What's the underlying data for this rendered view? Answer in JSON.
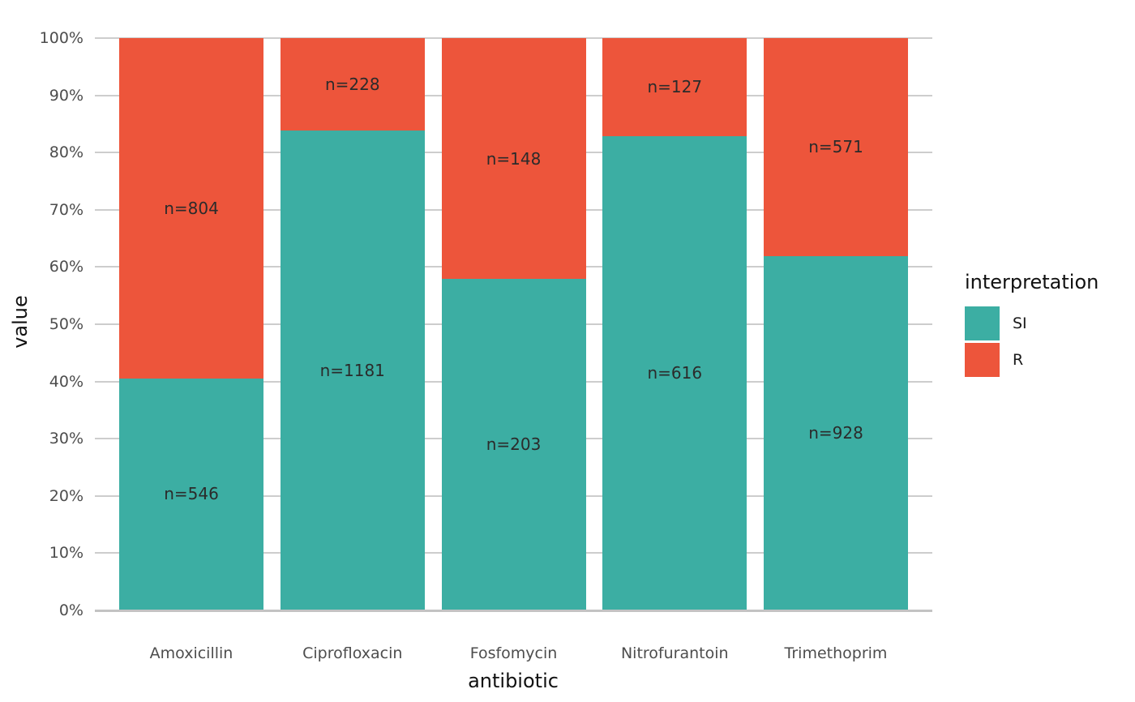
{
  "chart_data": {
    "type": "bar",
    "variant": "stacked-percent",
    "title": "",
    "xlabel": "antibiotic",
    "ylabel": "value",
    "categories": [
      "Amoxicillin",
      "Ciprofloxacin",
      "Fosfomycin",
      "Nitrofurantoin",
      "Trimethoprim"
    ],
    "series": [
      {
        "name": "SI",
        "color": "#3CAEA3",
        "values": [
          546,
          1181,
          203,
          616,
          928
        ],
        "labels": [
          "n=546",
          "n=1181",
          "n=203",
          "n=616",
          "n=928"
        ]
      },
      {
        "name": "R",
        "color": "#ED553B",
        "values": [
          804,
          228,
          148,
          127,
          571
        ],
        "labels": [
          "n=804",
          "n=228",
          "n=148",
          "n=127",
          "n=571"
        ]
      }
    ],
    "si_percent": [
      40.4,
      83.8,
      57.8,
      82.9,
      61.9
    ],
    "ylim": [
      0,
      100
    ],
    "y_tick_labels": [
      "0%",
      "10%",
      "20%",
      "30%",
      "40%",
      "50%",
      "60%",
      "70%",
      "80%",
      "90%",
      "100%"
    ],
    "grid": "horizontal-major-only",
    "legend": {
      "title": "interpretation",
      "position": "right",
      "entries": [
        {
          "label": "SI",
          "color": "#3CAEA3"
        },
        {
          "label": "R",
          "color": "#ED553B"
        }
      ]
    },
    "colors": {
      "gridline": "#cdcdcd",
      "axis_text": "#4d4d4d",
      "bar_label_text": "#2b2b2b",
      "title_text": "#111111",
      "background": "#ffffff"
    }
  }
}
